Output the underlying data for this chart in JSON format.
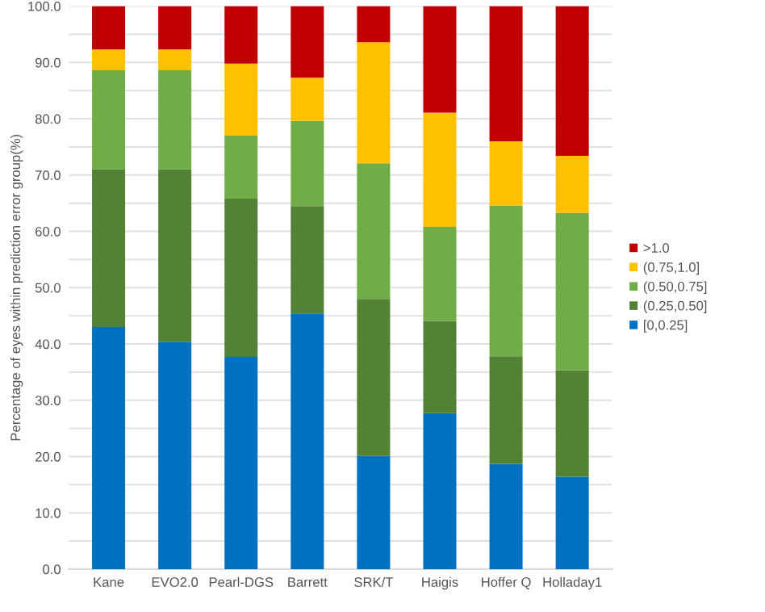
{
  "chart_data": {
    "type": "bar",
    "stacked": true,
    "ylabel": "Percentage of eyes within prediction error group(%)",
    "categories": [
      "Kane",
      "EVO2.0",
      "Pearl-DGS",
      "Barrett",
      "SRK/T",
      "Haigis",
      "Hoffer Q",
      "Holladay1"
    ],
    "series": [
      {
        "name": "[0,0.25]",
        "color": "#0070c0",
        "values": [
          43.0,
          40.4,
          37.7,
          45.4,
          20.1,
          27.7,
          18.7,
          16.4
        ]
      },
      {
        "name": "(0.25,0.50]",
        "color": "#548235",
        "values": [
          28.0,
          30.6,
          28.1,
          19.1,
          27.9,
          16.4,
          19.1,
          18.9
        ]
      },
      {
        "name": "(0.50,0.75]",
        "color": "#70ad47",
        "values": [
          17.6,
          17.6,
          11.2,
          15.1,
          24.1,
          16.7,
          26.8,
          28.0
        ]
      },
      {
        "name": "(0.75,1.0]",
        "color": "#ffc000",
        "values": [
          3.7,
          3.7,
          12.8,
          7.7,
          21.5,
          20.3,
          11.4,
          10.1
        ]
      },
      {
        "name": ">1.0",
        "color": "#c00000",
        "values": [
          7.7,
          7.7,
          10.2,
          12.7,
          6.4,
          18.9,
          24.0,
          26.6
        ]
      }
    ],
    "ylim": [
      0,
      100
    ],
    "yticks": [
      {
        "value": 0,
        "label": "0.0"
      },
      {
        "value": 5,
        "label": null
      },
      {
        "value": 10,
        "label": "10.0"
      },
      {
        "value": 15,
        "label": null
      },
      {
        "value": 20,
        "label": "20.0"
      },
      {
        "value": 25,
        "label": null
      },
      {
        "value": 30,
        "label": "30.0"
      },
      {
        "value": 35,
        "label": null
      },
      {
        "value": 40,
        "label": "40.0"
      },
      {
        "value": 45,
        "label": null
      },
      {
        "value": 50,
        "label": "50.0"
      },
      {
        "value": 55,
        "label": null
      },
      {
        "value": 60,
        "label": "60.0"
      },
      {
        "value": 65,
        "label": null
      },
      {
        "value": 70,
        "label": "70.0"
      },
      {
        "value": 75,
        "label": null
      },
      {
        "value": 80,
        "label": "80.0"
      },
      {
        "value": 85,
        "label": null
      },
      {
        "value": 90,
        "label": "90.0"
      },
      {
        "value": 95,
        "label": null
      },
      {
        "value": 100,
        "label": "100.0"
      }
    ],
    "grid": "y",
    "legend": "right"
  }
}
